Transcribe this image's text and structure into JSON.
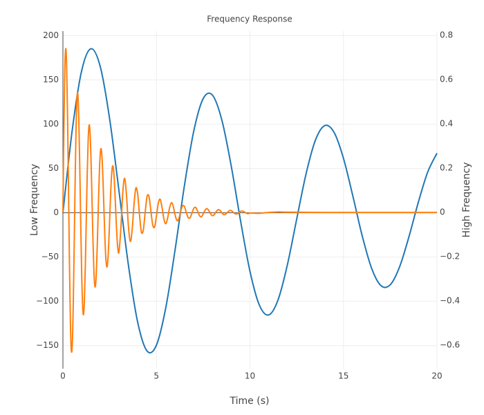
{
  "chart_data": {
    "type": "line",
    "title": "Frequency Response",
    "xlabel": "Time (s)",
    "ylabel": "Low Frequency",
    "y2label": "High Frequency",
    "xlim": [
      0,
      20
    ],
    "xticks": [
      0,
      5,
      10,
      15,
      20
    ],
    "ylim": [
      -176,
      205
    ],
    "yticks": [
      {
        "value": -150,
        "label": "−150"
      },
      {
        "value": -100,
        "label": "−100"
      },
      {
        "value": -50,
        "label": "−50"
      },
      0,
      50,
      100,
      150,
      200
    ],
    "y2lim": [
      -0.706,
      0.819
    ],
    "y2ticks": [
      {
        "value": -0.6,
        "label": "−0.6"
      },
      {
        "value": -0.4,
        "label": "−0.4"
      },
      {
        "value": -0.2,
        "label": "−0.2"
      },
      0,
      0.2,
      0.4,
      0.6,
      0.8
    ],
    "grid": true,
    "series": [
      {
        "color": "#1f77b4",
        "axis": "y",
        "x": [
          0,
          0.5,
          1,
          1.5,
          2,
          2.5,
          3,
          3.5,
          4,
          4.5,
          5,
          5.5,
          6,
          6.5,
          7,
          7.5,
          8,
          8.5,
          9,
          9.5,
          10,
          10.5,
          11,
          11.5,
          12,
          12.5,
          13,
          13.5,
          14,
          14.5,
          15,
          15.5,
          16,
          16.5,
          17,
          17.5,
          18,
          18.5,
          19,
          19.5,
          20
        ],
        "values": [
          0,
          93.5,
          160.1,
          185.1,
          164.6,
          105.6,
          24.3,
          -58.9,
          -123.9,
          -156.1,
          -149.4,
          -107.2,
          -41.4,
          31.1,
          92.6,
          128.9,
          132.6,
          104.4,
          52.6,
          -9.4,
          -66.0,
          -104.1,
          -115.4,
          -98.5,
          -58.9,
          -7.1,
          43.9,
          81.9,
          98.4,
          90.6,
          61.4,
          19.0,
          -25.9,
          -62.4,
          -82.2,
          -81.3,
          -61.1,
          -27.2,
          11.6,
          45.7,
          67.2
        ]
      },
      {
        "color": "#ff7f0e",
        "axis": "y2",
        "x": [
          0,
          0.05,
          0.1,
          0.15,
          0.2,
          0.25,
          0.3,
          0.35,
          0.4,
          0.45,
          0.5,
          0.55,
          0.6,
          0.65,
          0.7,
          0.75,
          0.8,
          0.85,
          0.9,
          0.95,
          1,
          1.05,
          1.1,
          1.15,
          1.2,
          1.25,
          1.3,
          1.35,
          1.4,
          1.45,
          1.5,
          1.55,
          1.6,
          1.65,
          1.7,
          1.75,
          1.8,
          1.85,
          1.9,
          1.95,
          2,
          2.05,
          2.1,
          2.15,
          2.2,
          2.25,
          2.3,
          2.35,
          2.4,
          2.45,
          2.5,
          2.55,
          2.6,
          2.65,
          2.7,
          2.75,
          2.8,
          2.85,
          2.9,
          2.95,
          3,
          3.1,
          3.2,
          3.3,
          3.4,
          3.5,
          3.6,
          3.7,
          3.8,
          3.9,
          4,
          4.1,
          4.2,
          4.3,
          4.4,
          4.5,
          4.6,
          4.7,
          4.8,
          4.9,
          5,
          5.1,
          5.2,
          5.3,
          5.4,
          5.5,
          5.6,
          5.7,
          5.8,
          5.9,
          6,
          6.1,
          6.2,
          6.3,
          6.4,
          6.5,
          6.6,
          6.7,
          6.8,
          6.9,
          7,
          7.1,
          7.2,
          7.3,
          7.4,
          7.5,
          7.6,
          7.7,
          7.8,
          7.9,
          8,
          8.1,
          8.2,
          8.3,
          8.4,
          8.5,
          8.6,
          8.7,
          8.8,
          8.9,
          9,
          9.1,
          9.2,
          9.3,
          9.4,
          9.5,
          9.6,
          9.7,
          9.8,
          9.9,
          10,
          10.5,
          11,
          11.5,
          12,
          14,
          16,
          18,
          20
        ],
        "values": [
          0,
          0.374,
          0.64,
          0.74,
          0.658,
          0.423,
          0.097,
          -0.236,
          -0.496,
          -0.624,
          -0.597,
          -0.429,
          -0.166,
          0.124,
          0.37,
          0.516,
          0.531,
          0.418,
          0.21,
          -0.037,
          -0.264,
          -0.416,
          -0.462,
          -0.394,
          -0.236,
          -0.028,
          0.175,
          0.327,
          0.394,
          0.362,
          0.246,
          0.076,
          -0.104,
          -0.25,
          -0.329,
          -0.325,
          -0.244,
          -0.109,
          0.046,
          0.183,
          0.269,
          0.286,
          0.234,
          0.129,
          -0.002,
          -0.127,
          -0.214,
          -0.247,
          -0.218,
          -0.139,
          -0.03,
          0.08,
          0.166,
          0.208,
          0.198,
          0.142,
          0.053,
          -0.043,
          -0.125,
          -0.172,
          -0.176,
          -0.069,
          0.089,
          0.154,
          0.077,
          -0.06,
          -0.131,
          -0.081,
          0.035,
          0.11,
          0.081,
          -0.016,
          -0.09,
          -0.078,
          0.002,
          0.072,
          0.072,
          0.009,
          -0.056,
          -0.066,
          -0.017,
          0.042,
          0.059,
          0.022,
          -0.03,
          -0.051,
          -0.025,
          0.02,
          0.044,
          0.027,
          -0.012,
          -0.037,
          -0.027,
          0.006,
          0.03,
          0.026,
          -0.001,
          -0.024,
          -0.024,
          -0.003,
          0.019,
          0.022,
          0.006,
          -0.014,
          -0.02,
          -0.007,
          0.01,
          0.017,
          0.008,
          -0.007,
          -0.015,
          -0.009,
          0.004,
          0.012,
          0.009,
          -0.002,
          -0.01,
          -0.008,
          0.0,
          0.008,
          0.008,
          0.001,
          -0.006,
          -0.007,
          -0.002,
          0.005,
          0.006,
          0.002,
          -0.003,
          -0.006,
          -0.003,
          -0.004,
          0,
          0.002,
          0.001,
          0,
          0,
          0,
          0
        ]
      }
    ]
  }
}
